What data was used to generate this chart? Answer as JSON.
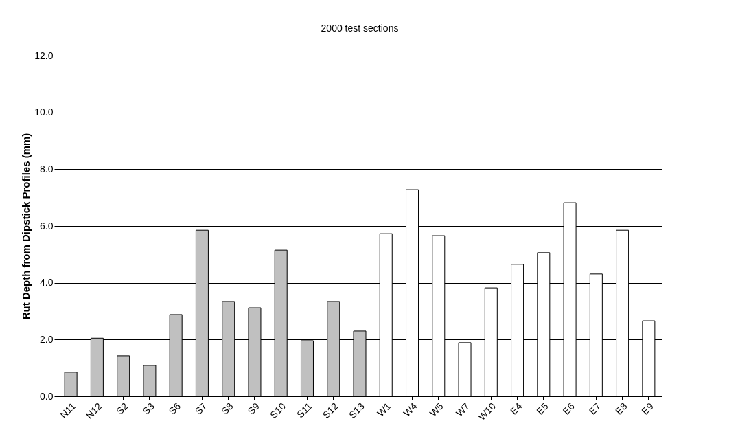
{
  "chart_data": {
    "type": "bar",
    "title": "2000 test sections",
    "ylabel": "Rut Depth from Dipstick Profiles (mm)",
    "categories": [
      "N11",
      "N12",
      "S2",
      "S3",
      "S6",
      "S7",
      "S8",
      "S9",
      "S10",
      "S11",
      "S12",
      "S13",
      "W1",
      "W4",
      "W5",
      "W7",
      "W10",
      "E4",
      "E5",
      "E6",
      "E7",
      "E8",
      "E9"
    ],
    "values": [
      0.85,
      2.05,
      1.43,
      1.09,
      2.88,
      5.85,
      3.34,
      3.12,
      5.15,
      1.96,
      3.34,
      2.3,
      5.73,
      7.28,
      5.66,
      1.89,
      3.82,
      4.65,
      5.06,
      6.82,
      4.31,
      5.85,
      2.66
    ],
    "colors": [
      "#c0c0c0",
      "#c0c0c0",
      "#c0c0c0",
      "#c0c0c0",
      "#c0c0c0",
      "#c0c0c0",
      "#c0c0c0",
      "#c0c0c0",
      "#c0c0c0",
      "#c0c0c0",
      "#c0c0c0",
      "#c0c0c0",
      "#ffffff",
      "#ffffff",
      "#ffffff",
      "#ffffff",
      "#ffffff",
      "#ffffff",
      "#ffffff",
      "#ffffff",
      "#ffffff",
      "#ffffff",
      "#ffffff"
    ],
    "ylim": [
      0,
      12
    ],
    "yticks": [
      {
        "value": 0,
        "label": "0.0"
      },
      {
        "value": 2,
        "label": "2.0"
      },
      {
        "value": 4,
        "label": "4.0"
      },
      {
        "value": 6,
        "label": "6.0"
      },
      {
        "value": 8,
        "label": "8.0"
      },
      {
        "value": 10,
        "label": "10.0"
      },
      {
        "value": 12,
        "label": "12.0"
      }
    ],
    "grid": "y"
  }
}
